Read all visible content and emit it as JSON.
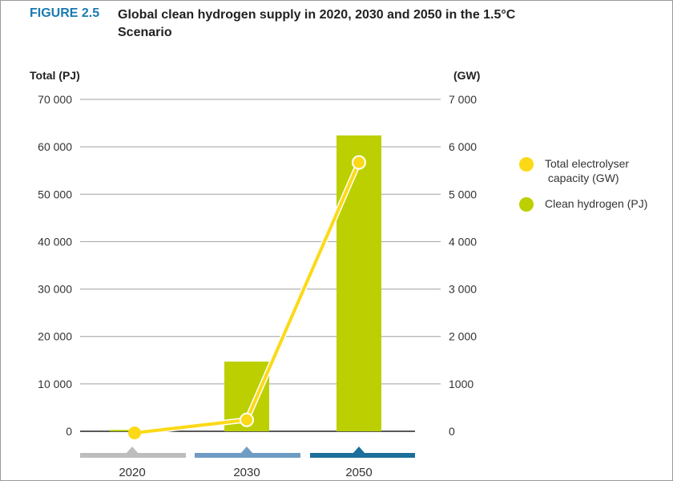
{
  "figure_label": "FIGURE 2.5",
  "title": "Global clean hydrogen supply in 2020, 2030 and 2050 in the 1.5°C Scenario",
  "chart_data": {
    "type": "bar+line",
    "categories": [
      "2020",
      "2030",
      "2050"
    ],
    "y_left": {
      "label": "Total (PJ)",
      "range": [
        0,
        70000
      ],
      "ticks": [
        "0",
        "10 000",
        "20 000",
        "30 000",
        "40 000",
        "50 000",
        "60 000",
        "70 000"
      ]
    },
    "y_right": {
      "label": "(GW)",
      "range": [
        0,
        7000
      ],
      "ticks": [
        "0",
        "1000",
        "2 000",
        "3 000",
        "4 000",
        "5 000",
        "6 000",
        "7 000"
      ]
    },
    "grid": true,
    "legend_position": "right",
    "series": [
      {
        "name": "Clean hydrogen (PJ)",
        "type": "bar",
        "axis": "left",
        "color": "#bccf00",
        "values": [
          300,
          14700,
          62400
        ]
      },
      {
        "name": "Total electrolyser capacity (GW)",
        "type": "line",
        "axis": "right",
        "color": "#fcd917",
        "values": [
          0,
          240,
          5670
        ]
      }
    ],
    "category_colors": [
      "#bdbdbd",
      "#6f9cc4",
      "#1b6f9a"
    ]
  },
  "legend": [
    {
      "label": "Total electrolyser\n capacity (GW)",
      "color": "#fcd917"
    },
    {
      "label": "Clean hydrogen (PJ)",
      "color": "#bccf00"
    }
  ]
}
